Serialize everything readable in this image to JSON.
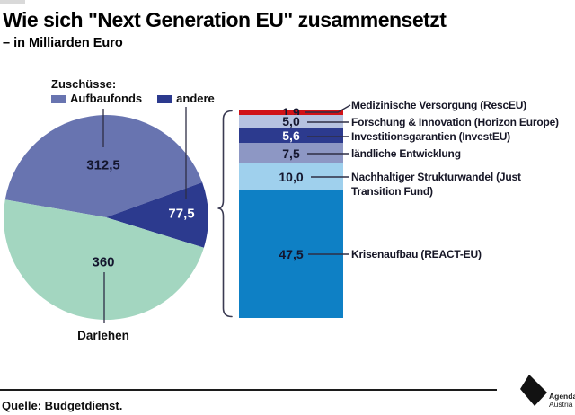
{
  "header": {
    "title": "Wie sich \"Next Generation EU\" zusammensetzt",
    "subtitle": "– in Milliarden Euro"
  },
  "legend": {
    "heading": "Zuschüsse:",
    "items": [
      {
        "label": "Aufbaufonds",
        "color": "#6874b0"
      },
      {
        "label": "andere",
        "color": "#2c3a8e"
      }
    ]
  },
  "chart_data": [
    {
      "type": "pie",
      "total": 750,
      "start_angle_deg": 280,
      "slices": [
        {
          "label": "Aufbaufonds",
          "value": 312.5,
          "display": "312,5",
          "color": "#6874b0",
          "value_label_color": "#14162e"
        },
        {
          "label": "andere",
          "value": 77.5,
          "display": "77,5",
          "color": "#2c3a8e",
          "value_label_color": "#ffffff"
        },
        {
          "label": "Darlehen",
          "value": 360,
          "display": "360",
          "color": "#a3d6c0",
          "value_label_color": "#14162e"
        }
      ]
    },
    {
      "type": "bar",
      "stacked": true,
      "orientation": "vertical",
      "total": 77.5,
      "segments": [
        {
          "label": "Medizinische Versorgung (RescEU)",
          "value": 1.9,
          "display": "1,9",
          "color": "#d01217",
          "value_label_color": "#14162e"
        },
        {
          "label": "Forschung & Innovation (Horizon Europe)",
          "value": 5.0,
          "display": "5,0",
          "color": "#b6c2e0",
          "value_label_color": "#14162e"
        },
        {
          "label": "Investitionsgarantien (InvestEU)",
          "value": 5.6,
          "display": "5,6",
          "color": "#2c3a8e",
          "value_label_color": "#ffffff"
        },
        {
          "label": "ländliche Entwicklung",
          "value": 7.5,
          "display": "7,5",
          "color": "#8d97c4",
          "value_label_color": "#14162e"
        },
        {
          "label": "Nachhaltiger Strukturwandel (Just Transition Fund)",
          "value": 10.0,
          "display": "10,0",
          "color": "#9fd0ed",
          "value_label_color": "#14162e"
        },
        {
          "label": "Krisenaufbau (REACT-EU)",
          "value": 47.5,
          "display": "47,5",
          "color": "#0e80c5",
          "value_label_color": "#14162e"
        }
      ]
    }
  ],
  "footer": {
    "source": "Quelle: Budgetdienst.",
    "logo": {
      "line1": "Agenda",
      "line2": "Austria"
    }
  }
}
